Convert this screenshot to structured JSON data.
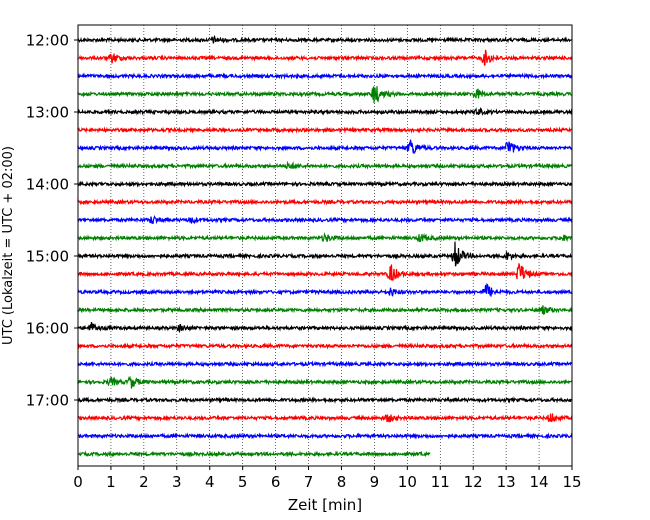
{
  "chart_data": {
    "type": "line",
    "title": "",
    "xlabel": "Zeit  [min]",
    "ylabel": "UTC (Lokalzeit = UTC + 02:00)",
    "xlim": [
      0,
      15
    ],
    "x_ticks": [
      "0",
      "1",
      "2",
      "3",
      "4",
      "5",
      "6",
      "7",
      "8",
      "9",
      "10",
      "11",
      "12",
      "13",
      "14",
      "15"
    ],
    "y_ticks": [
      "12:00",
      "13:00",
      "14:00",
      "15:00",
      "16:00",
      "17:00"
    ],
    "grid": "vertical-dotted",
    "colors": [
      "#000000",
      "#ff0000",
      "#0000ff",
      "#008000"
    ],
    "series": [
      {
        "start": "12:00",
        "color": "#000000",
        "end_min": 15,
        "events": [
          {
            "t": 4.1,
            "a": 3
          }
        ]
      },
      {
        "start": "12:15",
        "color": "#ff0000",
        "end_min": 15,
        "events": [
          {
            "t": 1.05,
            "a": 5
          },
          {
            "t": 12.35,
            "a": 8
          }
        ]
      },
      {
        "start": "12:30",
        "color": "#0000ff",
        "end_min": 15,
        "events": []
      },
      {
        "start": "12:45",
        "color": "#008000",
        "end_min": 15,
        "events": [
          {
            "t": 9.0,
            "a": 11
          },
          {
            "t": 12.1,
            "a": 5
          }
        ]
      },
      {
        "start": "13:00",
        "color": "#000000",
        "end_min": 15,
        "events": [
          {
            "t": 12.1,
            "a": 3
          }
        ]
      },
      {
        "start": "13:15",
        "color": "#ff0000",
        "end_min": 15,
        "events": []
      },
      {
        "start": "13:30",
        "color": "#0000ff",
        "end_min": 15,
        "events": [
          {
            "t": 10.1,
            "a": 9
          },
          {
            "t": 13.05,
            "a": 9
          }
        ]
      },
      {
        "start": "13:45",
        "color": "#008000",
        "end_min": 15,
        "events": [
          {
            "t": 6.4,
            "a": 3
          }
        ]
      },
      {
        "start": "14:00",
        "color": "#000000",
        "end_min": 15,
        "events": []
      },
      {
        "start": "14:15",
        "color": "#ff0000",
        "end_min": 15,
        "events": []
      },
      {
        "start": "14:30",
        "color": "#0000ff",
        "end_min": 15,
        "events": [
          {
            "t": 2.25,
            "a": 4
          },
          {
            "t": 3.4,
            "a": 3
          }
        ]
      },
      {
        "start": "14:45",
        "color": "#008000",
        "end_min": 15,
        "events": [
          {
            "t": 7.5,
            "a": 4
          },
          {
            "t": 10.4,
            "a": 4
          },
          {
            "t": 14.7,
            "a": 3
          }
        ]
      },
      {
        "start": "15:00",
        "color": "#000000",
        "end_min": 15,
        "events": [
          {
            "t": 11.45,
            "a": 14
          },
          {
            "t": 13.0,
            "a": 4
          }
        ]
      },
      {
        "start": "15:15",
        "color": "#ff0000",
        "end_min": 15,
        "events": [
          {
            "t": 9.5,
            "a": 10
          },
          {
            "t": 13.4,
            "a": 12
          }
        ]
      },
      {
        "start": "15:30",
        "color": "#0000ff",
        "end_min": 15,
        "events": [
          {
            "t": 9.5,
            "a": 4
          },
          {
            "t": 12.4,
            "a": 8
          }
        ]
      },
      {
        "start": "15:45",
        "color": "#008000",
        "end_min": 15,
        "events": [
          {
            "t": 14.1,
            "a": 4
          }
        ]
      },
      {
        "start": "16:00",
        "color": "#000000",
        "end_min": 15,
        "events": [
          {
            "t": 0.4,
            "a": 5
          },
          {
            "t": 3.1,
            "a": 3
          }
        ]
      },
      {
        "start": "16:15",
        "color": "#ff0000",
        "end_min": 15,
        "events": []
      },
      {
        "start": "16:30",
        "color": "#0000ff",
        "end_min": 15,
        "events": []
      },
      {
        "start": "16:45",
        "color": "#008000",
        "end_min": 15,
        "events": [
          {
            "t": 1.0,
            "a": 4
          },
          {
            "t": 1.6,
            "a": 6
          }
        ]
      },
      {
        "start": "17:00",
        "color": "#000000",
        "end_min": 15,
        "events": []
      },
      {
        "start": "17:15",
        "color": "#ff0000",
        "end_min": 15,
        "events": [
          {
            "t": 9.4,
            "a": 4
          },
          {
            "t": 14.35,
            "a": 5
          }
        ]
      },
      {
        "start": "17:30",
        "color": "#0000ff",
        "end_min": 15,
        "events": []
      },
      {
        "start": "17:45",
        "color": "#008000",
        "end_min": 10.7,
        "events": []
      }
    ]
  }
}
